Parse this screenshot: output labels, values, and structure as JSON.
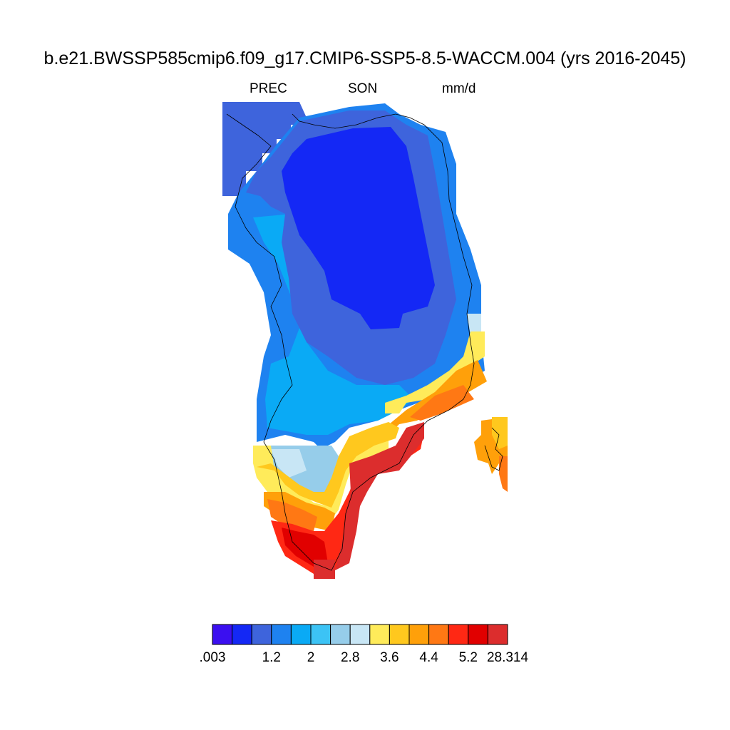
{
  "title": "b.e21.BWSSP585cmip6.f09_g17.CMIP6-SSP5-8.5-WACCM.004 (yrs 2016-2045)",
  "subtitle": {
    "variable": "PREC",
    "season": "SON",
    "units": "mm/d"
  },
  "colorbar": {
    "colors": [
      "#3b0ff0",
      "#1428f5",
      "#3e64dc",
      "#1e82f0",
      "#0aaaf5",
      "#3cc3f5",
      "#96cdea",
      "#c8e6f5",
      "#ffeb5a",
      "#ffc81e",
      "#ffa00a",
      "#ff7814",
      "#ff2814",
      "#e10000",
      "#dc2d2d"
    ],
    "labels": [
      {
        "text": ".003",
        "index": 0
      },
      {
        "text": "1.2",
        "index": 3
      },
      {
        "text": "2",
        "index": 5
      },
      {
        "text": "2.8",
        "index": 7
      },
      {
        "text": "3.6",
        "index": 9
      },
      {
        "text": "4.4",
        "index": 11
      },
      {
        "text": "5.2",
        "index": 13
      },
      {
        "text": "28.314",
        "index": 15
      }
    ]
  },
  "map_regions": [
    {
      "name": "interior-driest",
      "class": 1
    },
    {
      "name": "north-edge",
      "class": 2
    },
    {
      "name": "west-coast",
      "class": 3
    },
    {
      "name": "central-west",
      "class": 4
    },
    {
      "name": "southwest-slope",
      "class": 5
    },
    {
      "name": "southeast-transition",
      "class": 7
    },
    {
      "name": "south-moderate",
      "class": 9
    },
    {
      "name": "southeast-coast",
      "class": 12
    },
    {
      "name": "south-tip",
      "class": 13
    },
    {
      "name": "iceland-fragment",
      "class": 10
    }
  ]
}
